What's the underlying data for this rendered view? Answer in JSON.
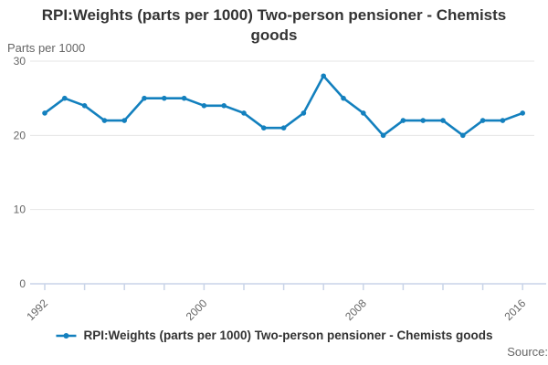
{
  "header": {
    "title": "RPI:Weights (parts per 1000) Two-person pensioner - Chemists goods"
  },
  "chart": {
    "y_axis_title": "Parts per 1000",
    "source_label": "Source:"
  },
  "legend": {
    "label": "RPI:Weights (parts per 1000) Two-person pensioner - Chemists goods"
  },
  "chart_data": {
    "type": "line",
    "title": "RPI:Weights (parts per 1000) Two-person pensioner - Chemists goods",
    "ylabel": "Parts per 1000",
    "xlabel": "",
    "x": [
      1992,
      1993,
      1994,
      1995,
      1996,
      1997,
      1998,
      1999,
      2000,
      2001,
      2002,
      2003,
      2004,
      2005,
      2006,
      2007,
      2008,
      2009,
      2010,
      2011,
      2012,
      2013,
      2014,
      2015,
      2016
    ],
    "series": [
      {
        "name": "RPI:Weights (parts per 1000) Two-person pensioner - Chemists goods",
        "values": [
          23,
          25,
          24,
          22,
          22,
          25,
          25,
          25,
          24,
          24,
          23,
          21,
          21,
          23,
          28,
          25,
          23,
          20,
          22,
          22,
          22,
          20,
          22,
          22,
          23
        ]
      }
    ],
    "ylim": [
      0,
      30
    ],
    "y_ticks": [
      0,
      10,
      20,
      30
    ],
    "x_tick_step_years": 2,
    "x_tick_labels": [
      "1992",
      "2000",
      "2008",
      "2016"
    ],
    "grid": true,
    "legend_position": "bottom",
    "line_color": "#1380be",
    "axis_color": "#c9d4e8",
    "grid_color": "#e6e6e6",
    "text_color": "#666666",
    "title_color": "#333333"
  }
}
